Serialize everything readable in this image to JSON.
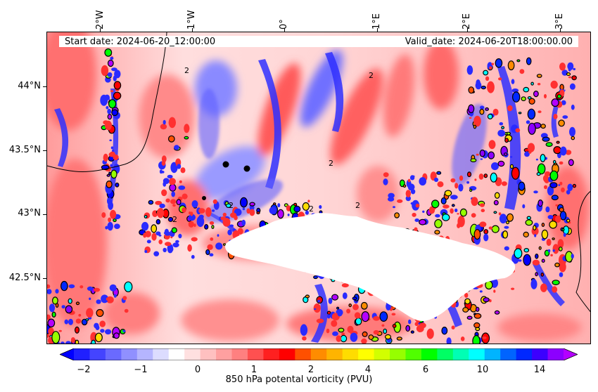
{
  "map": {
    "longitude_labels": [
      "2°W",
      "1°W",
      "0°",
      "1°E",
      "2°E",
      "3°E"
    ],
    "latitude_labels": [
      "44°N",
      "43.5°N",
      "43°N",
      "42.5°N"
    ],
    "start_date": "Start date: 2024-06-20_12:00:00",
    "valid_date": "Valid_date: 2024-06-20T18:00:00.00",
    "variable": "850 hPa potental vorticity (PVU)",
    "contour_label": "2"
  },
  "colorbar": {
    "tick_labels": [
      "−2",
      "−1",
      "0",
      "1",
      "2",
      "4",
      "6",
      "10",
      "14"
    ],
    "colors": [
      "#0000ff",
      "#2020ff",
      "#4444ff",
      "#6a6aff",
      "#9090ff",
      "#b5b5ff",
      "#dcdcff",
      "#ffffff",
      "#ffe0e0",
      "#ffc0c0",
      "#ffa0a0",
      "#ff8080",
      "#ff5050",
      "#ff2020",
      "#ff0000",
      "#ff5000",
      "#ff8c00",
      "#ffb400",
      "#ffdc00",
      "#ffff00",
      "#d2ff00",
      "#96ff00",
      "#50ff00",
      "#00ff00",
      "#00ff64",
      "#00ffb4",
      "#00ffff",
      "#00b4ff",
      "#0064ff",
      "#0028ff",
      "#3c00ff",
      "#8c00ff",
      "#b400ff"
    ]
  }
}
